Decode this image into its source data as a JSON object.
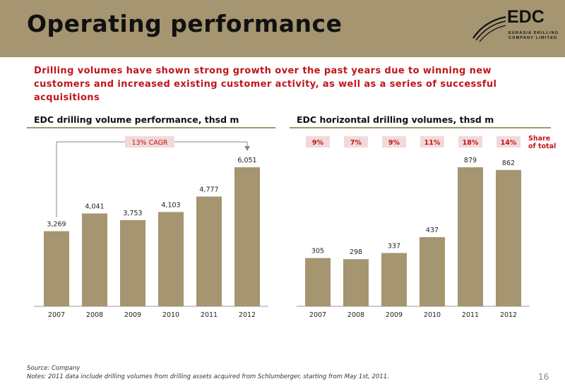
{
  "header": {
    "title": "Operating performance"
  },
  "logo": {
    "word": "EDC",
    "line1": "EURASIA DRILLING",
    "line2": "COMPANY LIMITED"
  },
  "subtitle": "Drilling volumes have shown strong growth over the past years due to winning new customers and increased existing customer activity, as well as a series of successful acquisitions",
  "colors": {
    "bar": "#a59570",
    "accent": "#c0151b",
    "badge_bg": "#f2d9d9",
    "header_bg": "#a59570"
  },
  "chart_data": [
    {
      "type": "bar",
      "title": "EDC drilling volume performance, thsd m",
      "categories": [
        "2007",
        "2008",
        "2009",
        "2010",
        "2011",
        "2012"
      ],
      "values": [
        3269,
        4041,
        3753,
        4103,
        4777,
        6051
      ],
      "value_labels": [
        "3,269",
        "4,041",
        "3,753",
        "4,103",
        "4,777",
        "6,051"
      ],
      "annotation": "13% CAGR",
      "ylim": [
        0,
        6051
      ]
    },
    {
      "type": "bar",
      "title": "EDC horizontal drilling volumes, thsd m",
      "categories": [
        "2007",
        "2008",
        "2009",
        "2010",
        "2011",
        "2012"
      ],
      "values": [
        305,
        298,
        337,
        437,
        879,
        862
      ],
      "value_labels": [
        "305",
        "298",
        "337",
        "437",
        "879",
        "862"
      ],
      "share_labels": [
        "9%",
        "7%",
        "9%",
        "11%",
        "18%",
        "14%"
      ],
      "share_legend": [
        "Share",
        "of total"
      ],
      "ylim": [
        0,
        879
      ]
    }
  ],
  "footer": {
    "source": "Source: Company",
    "notes": "Notes: 2011 data include drilling volumes from drilling assets acquired from Schlumberger, starting from May 1st, 2011.",
    "page": "16"
  }
}
